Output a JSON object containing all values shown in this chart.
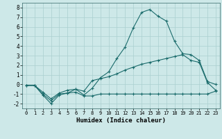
{
  "xlabel": "Humidex (Indice chaleur)",
  "ylabel": "",
  "background_color": "#cde8e8",
  "grid_color": "#aacfcf",
  "line_color": "#1a6b6b",
  "xlim": [
    -0.5,
    23.5
  ],
  "ylim": [
    -2.5,
    8.5
  ],
  "xticks": [
    0,
    1,
    2,
    3,
    4,
    5,
    6,
    7,
    8,
    9,
    10,
    11,
    12,
    13,
    14,
    15,
    16,
    17,
    18,
    19,
    20,
    21,
    22,
    23
  ],
  "yticks": [
    -2,
    -1,
    0,
    1,
    2,
    3,
    4,
    5,
    6,
    7,
    8
  ],
  "line1_x": [
    0,
    1,
    2,
    3,
    4,
    5,
    6,
    7,
    8,
    9,
    10,
    11,
    12,
    13,
    14,
    15,
    16,
    17,
    18,
    19,
    20,
    21,
    22,
    23
  ],
  "line1_y": [
    -0.1,
    -0.1,
    -1.0,
    -1.7,
    -1.0,
    -0.9,
    -0.5,
    -1.1,
    -0.4,
    0.7,
    1.3,
    2.7,
    3.9,
    5.9,
    7.5,
    7.8,
    7.1,
    6.6,
    4.5,
    3.2,
    3.1,
    2.5,
    0.3,
    0.0
  ],
  "line2_x": [
    0,
    1,
    2,
    3,
    4,
    5,
    6,
    7,
    8,
    9,
    10,
    11,
    12,
    13,
    14,
    15,
    16,
    17,
    18,
    19,
    20,
    21,
    22,
    23
  ],
  "line2_y": [
    -0.1,
    -0.1,
    -0.8,
    -1.5,
    -0.9,
    -0.6,
    -0.5,
    -0.7,
    0.4,
    0.6,
    0.8,
    1.1,
    1.5,
    1.8,
    2.1,
    2.3,
    2.5,
    2.7,
    2.9,
    3.1,
    2.5,
    2.3,
    0.2,
    -0.6
  ],
  "line3_x": [
    0,
    1,
    2,
    3,
    4,
    5,
    6,
    7,
    8,
    9,
    10,
    11,
    12,
    13,
    14,
    15,
    16,
    17,
    18,
    19,
    20,
    21,
    22,
    23
  ],
  "line3_y": [
    -0.1,
    -0.1,
    -1.1,
    -2.0,
    -1.1,
    -0.9,
    -0.8,
    -1.2,
    -1.2,
    -1.0,
    -1.0,
    -1.0,
    -1.0,
    -1.0,
    -1.0,
    -1.0,
    -1.0,
    -1.0,
    -1.0,
    -1.0,
    -1.0,
    -1.0,
    -1.0,
    -0.7
  ]
}
